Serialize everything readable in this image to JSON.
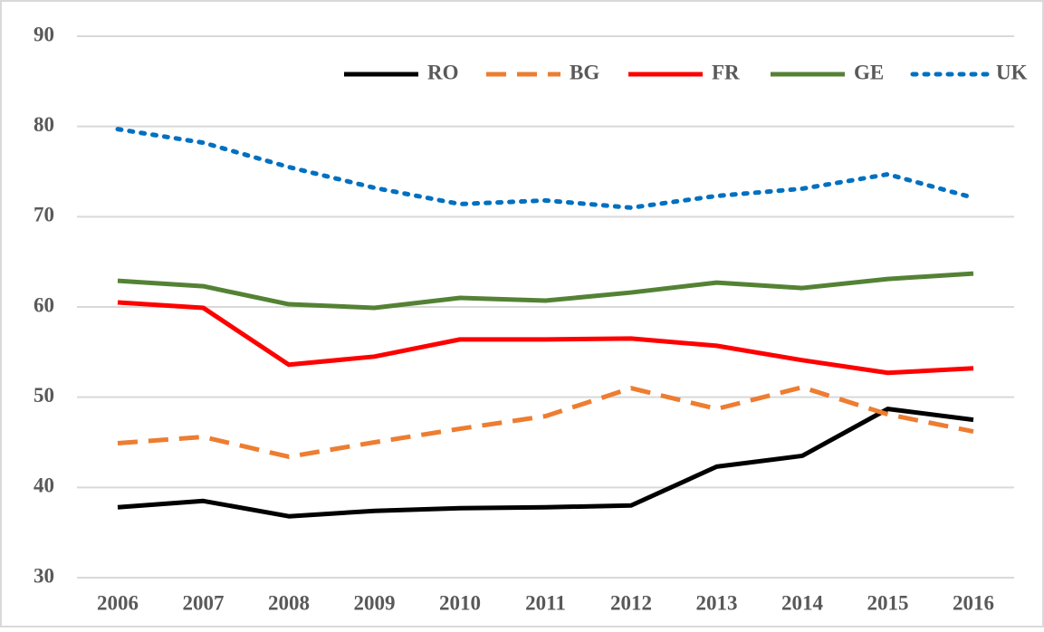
{
  "chart_data": {
    "type": "line",
    "categories": [
      "2006",
      "2007",
      "2008",
      "2009",
      "2010",
      "2011",
      "2012",
      "2013",
      "2014",
      "2015",
      "2016"
    ],
    "series": [
      {
        "name": "RO",
        "color": "#000000",
        "style": "solid",
        "values": [
          37.8,
          38.5,
          36.8,
          37.4,
          37.7,
          37.8,
          38.0,
          42.3,
          43.5,
          48.7,
          47.5
        ]
      },
      {
        "name": "BG",
        "color": "#ed7d31",
        "style": "dashed",
        "values": [
          44.9,
          45.6,
          43.4,
          45.0,
          46.5,
          47.9,
          51.0,
          48.7,
          51.1,
          48.1,
          46.2
        ]
      },
      {
        "name": "FR",
        "color": "#ff0000",
        "style": "solid",
        "values": [
          60.5,
          59.9,
          53.6,
          54.5,
          56.4,
          56.4,
          56.5,
          55.7,
          54.1,
          52.7,
          53.2
        ]
      },
      {
        "name": "GE",
        "color": "#548235",
        "style": "solid",
        "values": [
          62.9,
          62.3,
          60.3,
          59.9,
          61.0,
          60.7,
          61.6,
          62.7,
          62.1,
          63.1,
          63.7
        ]
      },
      {
        "name": "UK",
        "color": "#0070c0",
        "style": "dotted",
        "values": [
          79.7,
          78.2,
          75.5,
          73.2,
          71.4,
          71.8,
          71.0,
          72.3,
          73.1,
          74.7,
          72.1
        ]
      }
    ],
    "ylim": [
      30,
      90
    ],
    "yticks": [
      30,
      40,
      50,
      60,
      70,
      80,
      90
    ],
    "grid": true,
    "legend": "top-right"
  }
}
